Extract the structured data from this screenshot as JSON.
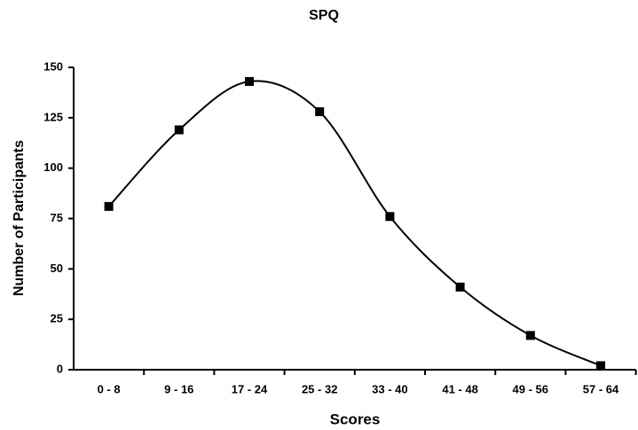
{
  "chart_data": {
    "type": "line",
    "title": "SPQ",
    "xlabel": "Scores",
    "ylabel": "Number of Participants",
    "categories": [
      "0 - 8",
      "9 - 16",
      "17 - 24",
      "25 - 32",
      "33 - 40",
      "41 - 48",
      "49 - 56",
      "57 - 64"
    ],
    "series": [
      {
        "name": "SPQ",
        "color": "#000000",
        "values": [
          81,
          119,
          143,
          128,
          76,
          41,
          17,
          2
        ]
      }
    ],
    "ylim": [
      0,
      150
    ],
    "yticks": [
      0,
      25,
      50,
      75,
      100,
      125,
      150
    ],
    "grid": false,
    "smooth": true
  }
}
